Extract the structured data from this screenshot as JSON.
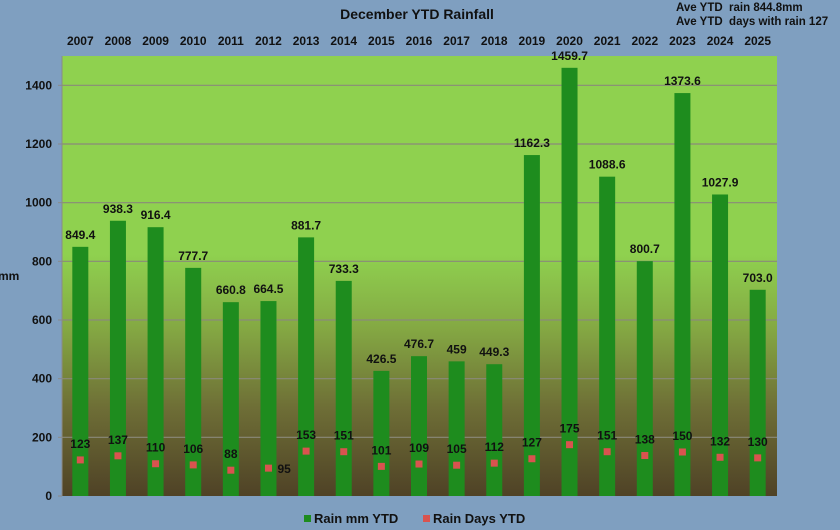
{
  "chart_data": {
    "type": "bar",
    "title": "December YTD Rainfall",
    "annotations": [
      "Ave YTD  rain 844.8mm",
      "Ave YTD  days with rain 127"
    ],
    "categories": [
      "2007",
      "2008",
      "2009",
      "2010",
      "2011",
      "2012",
      "2013",
      "2014",
      "2015",
      "2016",
      "2017",
      "2018",
      "2019",
      "2020",
      "2021",
      "2022",
      "2023",
      "2024",
      "2025"
    ],
    "series": [
      {
        "name": "Rain mm YTD",
        "kind": "bar",
        "color": "#1e8c1e",
        "values": [
          849.4,
          938.3,
          916.4,
          777.7,
          660.8,
          664.5,
          881.7,
          733.3,
          426.5,
          476.7,
          459,
          449.3,
          1162.3,
          1459.7,
          1088.6,
          800.7,
          1373.6,
          1027.9,
          703.0
        ],
        "labels": [
          "849.4",
          "938.3",
          "916.4",
          "777.7",
          "660.8",
          "664.5",
          "881.7",
          "733.3",
          "426.5",
          "476.7",
          "459",
          "449.3",
          "1162.3",
          "1459.7",
          "1088.6",
          "800.7",
          "1373.6",
          "1027.9",
          "703.0"
        ]
      },
      {
        "name": "Rain Days YTD",
        "kind": "marker",
        "color": "#d9534f",
        "values": [
          123,
          137,
          110,
          106,
          88,
          95,
          153,
          151,
          101,
          109,
          105,
          112,
          127,
          175,
          151,
          138,
          150,
          132,
          130
        ],
        "labels": [
          "123",
          "137",
          "110",
          "106",
          "88",
          "95",
          "153",
          "151",
          "101",
          "109",
          "105",
          "112",
          "127",
          "175",
          "151",
          "138",
          "150",
          "132",
          "130"
        ]
      }
    ],
    "xlabel": "",
    "xaxis_position": "top",
    "ylabel": "mm",
    "ylim": [
      0,
      1500
    ],
    "yticks": [
      0,
      200,
      400,
      600,
      800,
      1000,
      1200,
      1400
    ],
    "ytick_labels": [
      "0",
      "200",
      "400",
      "600",
      "800",
      "1000",
      "1200",
      "1400"
    ],
    "grid": true,
    "legend_position": "bottom-center",
    "background_gradient": [
      "#8fd14f",
      "#4e4226"
    ]
  }
}
